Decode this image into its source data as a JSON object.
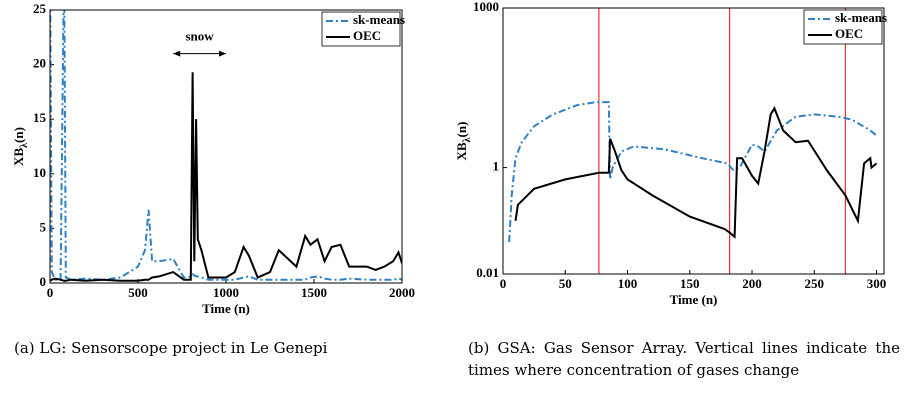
{
  "chart_data": [
    {
      "type": "line",
      "caption": "(a) LG: Sensorscope project in Le Genepi",
      "xlabel": "Time (n)",
      "ylabel": [
        "XB",
        "λ",
        "(n)"
      ],
      "xlim": [
        0,
        2000
      ],
      "xticks": [
        0,
        500,
        1000,
        1500,
        2000
      ],
      "ylim": [
        0,
        25
      ],
      "yticks": [
        0,
        5,
        10,
        15,
        20,
        25
      ],
      "ylog": false,
      "legend": "upper right",
      "annotation": {
        "text": "snow",
        "x": [
          700,
          1000
        ],
        "y": 21
      },
      "series": [
        {
          "name": "sk-means",
          "color": "#2f80c4",
          "linestyle": "dashdot",
          "x": [
            0,
            10,
            30,
            60,
            80,
            90,
            120,
            200,
            300,
            400,
            500,
            540,
            560,
            580,
            620,
            700,
            760,
            800,
            810,
            820,
            830,
            840,
            860,
            900,
            1000,
            1050,
            1100,
            1130,
            1180,
            1250,
            1300,
            1400,
            1450,
            1480,
            1520,
            1560,
            1600,
            1650,
            1700,
            1800,
            1850,
            1900,
            1950,
            1980,
            2000
          ],
          "values": [
            30,
            1,
            0.3,
            0.3,
            30,
            0.5,
            0.3,
            0.4,
            0.3,
            0.5,
            1.5,
            3,
            6.7,
            2,
            2,
            2.2,
            0.5,
            0.6,
            0.8,
            0.7,
            0.6,
            0.6,
            0.5,
            0.3,
            0.3,
            0.3,
            0.5,
            0.6,
            0.3,
            0.3,
            0.3,
            0.3,
            0.3,
            0.5,
            0.6,
            0.4,
            0.3,
            0.3,
            0.4,
            0.3,
            0.3,
            0.3,
            0.3,
            0.4,
            0.3
          ]
        },
        {
          "name": "OEC",
          "color": "#000000",
          "linestyle": "solid",
          "x": [
            0,
            10,
            30,
            60,
            80,
            90,
            120,
            200,
            300,
            400,
            500,
            540,
            560,
            580,
            620,
            700,
            760,
            800,
            810,
            820,
            830,
            840,
            860,
            900,
            1000,
            1050,
            1100,
            1130,
            1180,
            1250,
            1300,
            1400,
            1450,
            1480,
            1520,
            1560,
            1600,
            1650,
            1700,
            1800,
            1850,
            1900,
            1950,
            1980,
            2000
          ],
          "values": [
            0.2,
            0.3,
            0.4,
            0.3,
            0.2,
            0.2,
            0.3,
            0.2,
            0.3,
            0.2,
            0.2,
            0.3,
            0.3,
            0.5,
            0.6,
            1,
            0.3,
            0.3,
            19.3,
            2,
            15,
            4,
            3,
            0.5,
            0.5,
            1,
            3.3,
            2.5,
            0.5,
            1,
            3,
            1.5,
            4.3,
            3.5,
            4,
            2,
            3.3,
            3.5,
            1.5,
            1.5,
            1.2,
            1.5,
            2,
            2.8,
            1.8
          ]
        }
      ]
    },
    {
      "type": "line",
      "caption": "(b) GSA: Gas Sensor Array. Vertical lines indicate the times where concentration of gases change",
      "xlabel": "Time (n)",
      "ylabel": [
        "XB",
        "λ",
        "(n)"
      ],
      "xlim": [
        0,
        306
      ],
      "xticks": [
        0,
        50,
        100,
        150,
        200,
        250,
        300
      ],
      "ylim": [
        0.01,
        1000
      ],
      "yticks": [
        0.01,
        1,
        1000
      ],
      "ylog": true,
      "legend": "upper right",
      "vlines": {
        "x": [
          77,
          182,
          275
        ],
        "color": "#e8312f"
      },
      "series": [
        {
          "name": "sk-means",
          "color": "#2f80c4",
          "linestyle": "dashdot",
          "x": [
            5,
            7,
            10,
            15,
            25,
            40,
            60,
            75,
            84,
            85,
            86,
            88,
            95,
            105,
            130,
            160,
            180,
            185,
            190,
            200,
            205,
            210,
            220,
            235,
            250,
            270,
            280,
            295,
            300
          ],
          "values": [
            0.04,
            0.3,
            1.5,
            3,
            6,
            10,
            15,
            17,
            17,
            17,
            0.6,
            1,
            2,
            2.5,
            2.2,
            1.5,
            1.2,
            0.9,
            1,
            2.7,
            2.5,
            2,
            5,
            9,
            10,
            9,
            8,
            5,
            4
          ]
        },
        {
          "name": "OEC",
          "color": "#000000",
          "linestyle": "solid",
          "x": [
            10,
            12,
            25,
            50,
            77,
            84,
            85,
            86,
            90,
            95,
            100,
            120,
            150,
            178,
            182,
            186,
            188,
            192,
            200,
            205,
            210,
            215,
            218,
            225,
            235,
            245,
            260,
            275,
            285,
            290,
            295,
            296,
            300
          ],
          "values": [
            0.1,
            0.2,
            0.4,
            0.6,
            0.8,
            0.8,
            0.8,
            3.5,
            2,
            0.9,
            0.6,
            0.3,
            0.12,
            0.07,
            0.06,
            0.05,
            1.5,
            1.5,
            0.7,
            0.5,
            2,
            10,
            13,
            5,
            3,
            3.2,
            0.9,
            0.3,
            0.1,
            1.2,
            1.5,
            1,
            1.2
          ]
        }
      ]
    }
  ]
}
